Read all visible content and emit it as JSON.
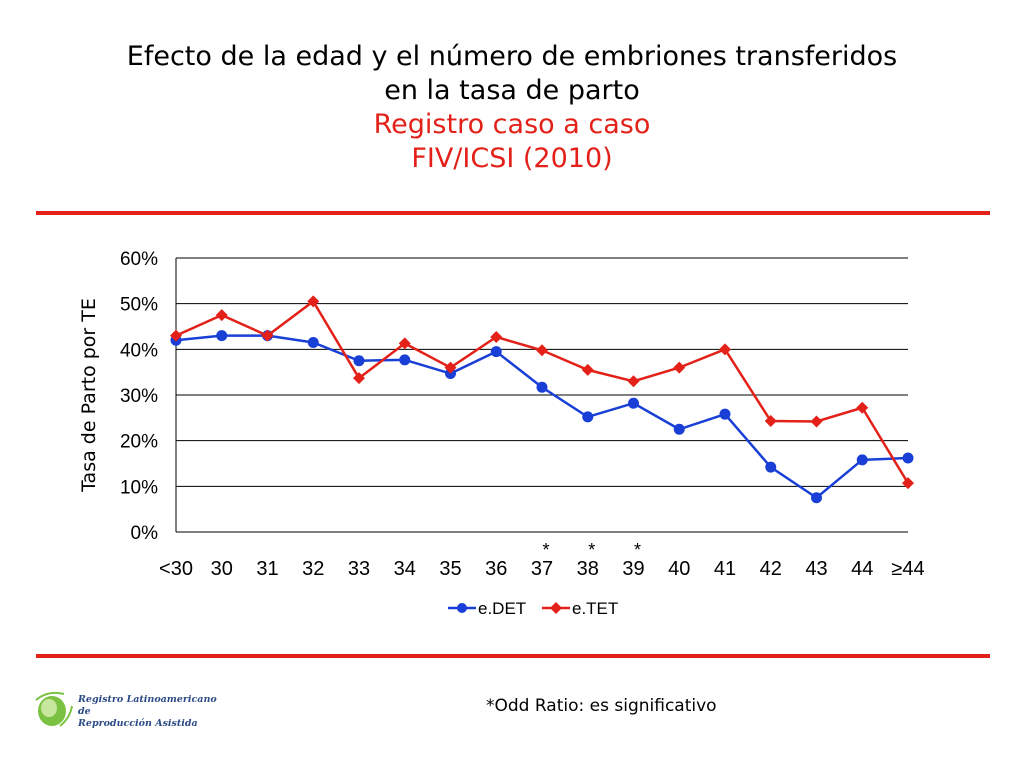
{
  "slide": {
    "title_line1": "Efecto de la edad y el número de embriones transferidos",
    "title_line2": "en la tasa de parto",
    "subtitle_line1": "Registro caso a caso",
    "subtitle_line2": "FIV/ICSI (2010)",
    "footnote": "*Odd Ratio: es significativo",
    "logo_line1": "Registro Latinoamericano de",
    "logo_line2": "Reproducción Asistida"
  },
  "colors": {
    "accent_red": "#e32119",
    "series_blue": "#1a3fd6",
    "series_red": "#e32119",
    "grid": "#000000"
  },
  "chart_data": {
    "type": "line",
    "ylabel": "Tasa de Parto por TE",
    "ylim": [
      0,
      0.6
    ],
    "yticks": [
      0,
      0.1,
      0.2,
      0.3,
      0.4,
      0.5,
      0.6
    ],
    "ytick_labels": [
      "0%",
      "10%",
      "20%",
      "30%",
      "40%",
      "50%",
      "60%"
    ],
    "categories": [
      "<30",
      "30",
      "31",
      "32",
      "33",
      "34",
      "35",
      "36",
      "37",
      "38",
      "39",
      "40",
      "41",
      "42",
      "43",
      "44",
      "≥44"
    ],
    "significance_marks": [
      {
        "category": "37",
        "label": "*"
      },
      {
        "category": "38",
        "label": "*"
      },
      {
        "category": "39",
        "label": "*"
      }
    ],
    "legend_position": "bottom-center",
    "series": [
      {
        "name": "e.DET",
        "marker": "circle",
        "color": "#1a3fd6",
        "values": [
          0.42,
          0.43,
          0.43,
          0.415,
          0.375,
          0.377,
          0.347,
          0.395,
          0.317,
          0.252,
          0.282,
          0.225,
          0.258,
          0.142,
          0.075,
          0.158,
          0.162
        ]
      },
      {
        "name": "e.TET",
        "marker": "diamond",
        "color": "#e32119",
        "values": [
          0.43,
          0.475,
          0.43,
          0.505,
          0.337,
          0.413,
          0.36,
          0.427,
          0.398,
          0.355,
          0.33,
          0.36,
          0.4,
          0.243,
          0.242,
          0.272,
          0.107
        ]
      }
    ]
  }
}
